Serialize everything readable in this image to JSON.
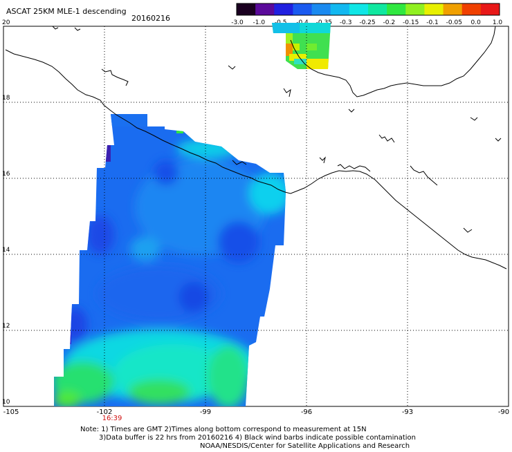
{
  "header": {
    "title": "ASCAT 25KM MLE-1 descending",
    "date": "20160216"
  },
  "colorbar": {
    "tick_labels": [
      "-3.0",
      "-1.0",
      "-0.5",
      "-0.4",
      "-0.35",
      "-0.3",
      "-0.25",
      "-0.2",
      "-0.15",
      "-0.1",
      "-0.05",
      "0.0",
      "1.0"
    ],
    "colors": [
      "#1a0020",
      "#5a0a9a",
      "#2020e0",
      "#1a5af0",
      "#1a8af0",
      "#12b8f0",
      "#10e6e6",
      "#10e8a0",
      "#30e840",
      "#90f020",
      "#e8f000",
      "#f0a000",
      "#f04000",
      "#e81818"
    ]
  },
  "axes": {
    "lon_labels": [
      "-105",
      "-102",
      "-99",
      "-96",
      "-93",
      "-90"
    ],
    "lat_labels": [
      "20",
      "18",
      "16",
      "14",
      "12",
      "10"
    ],
    "lon_range": [
      -105,
      -90
    ],
    "lat_range": [
      10,
      20
    ],
    "grid": true
  },
  "time_label": "16:39",
  "notes": {
    "line1": "Note: 1) Times are GMT 2)Times along bottom correspond to measurement at 15N",
    "line2": "3)Data buffer is 22 hrs from 20160216 4) Black wind barbs indicate possible contamination",
    "line3": "NOAA/NESDIS/Center for Satellite Applications and Research"
  }
}
